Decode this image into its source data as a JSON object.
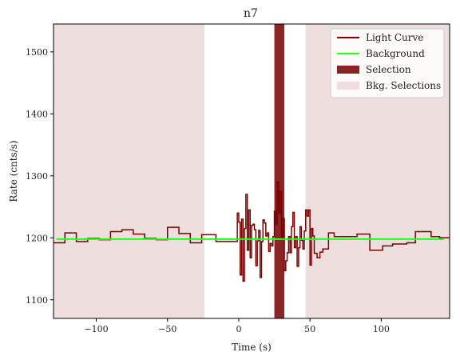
{
  "chart_data": {
    "type": "line",
    "title": "n7",
    "xlabel": "Time (s)",
    "ylabel": "Rate (cnts/s)",
    "xlim": [
      -130,
      148
    ],
    "ylim": [
      1070,
      1545
    ],
    "xticks": [
      -100,
      -50,
      0,
      50,
      100
    ],
    "yticks": [
      1100,
      1200,
      1300,
      1400,
      1500
    ],
    "legend_placement": "top-right",
    "legend": [
      {
        "label": "Light Curve",
        "kind": "line",
        "color": "#7a0000"
      },
      {
        "label": "Background",
        "kind": "line",
        "color": "#22ff22"
      },
      {
        "label": "Selection",
        "kind": "patch",
        "color": "#8b2525"
      },
      {
        "label": "Bkg. Selections",
        "kind": "patch",
        "color": "#eedede"
      }
    ],
    "background": {
      "x": [
        -128,
        144
      ],
      "y": [
        1198,
        1198
      ]
    },
    "selection": [
      25,
      32
    ],
    "bkg_selections": [
      [
        -130,
        -24
      ],
      [
        47,
        148
      ]
    ],
    "light_curve": {
      "edges": [
        -130,
        -122,
        -114,
        -106,
        -98,
        -90,
        -82,
        -74,
        -66,
        -58,
        -50,
        -42,
        -34,
        -26,
        -16,
        -8,
        -1,
        0,
        1,
        2,
        3,
        4,
        5,
        6,
        7,
        8,
        9,
        10,
        11,
        12,
        13,
        14,
        15,
        16,
        17,
        18,
        19,
        20,
        21,
        22,
        23,
        24,
        25,
        26,
        27,
        28,
        29,
        30,
        31,
        32,
        33,
        34,
        35,
        36,
        37,
        38,
        39,
        40,
        41,
        42,
        43,
        44,
        45,
        46,
        47,
        48,
        49,
        50,
        51,
        52,
        53,
        55,
        57,
        59,
        63,
        67,
        74,
        83,
        92,
        101,
        108,
        118,
        124,
        135,
        141,
        148
      ],
      "values": [
        1192,
        1208,
        1194,
        1199,
        1197,
        1210,
        1213,
        1206,
        1199,
        1197,
        1217,
        1207,
        1192,
        1205,
        1194,
        1194,
        1240,
        1225,
        1140,
        1230,
        1130,
        1215,
        1270,
        1180,
        1245,
        1168,
        1220,
        1222,
        1213,
        1155,
        1195,
        1212,
        1136,
        1194,
        1229,
        1224,
        1203,
        1208,
        1178,
        1191,
        1187,
        1202,
        1243,
        1222,
        1290,
        1240,
        1275,
        1201,
        1231,
        1147,
        1163,
        1176,
        1202,
        1176,
        1218,
        1241,
        1184,
        1202,
        1154,
        1184,
        1218,
        1196,
        1182,
        1211,
        1245,
        1235,
        1245,
        1156,
        1215,
        1203,
        1175,
        1168,
        1177,
        1182,
        1208,
        1202,
        1202,
        1206,
        1180,
        1187,
        1190,
        1192,
        1210,
        1202,
        1200
      ]
    }
  }
}
